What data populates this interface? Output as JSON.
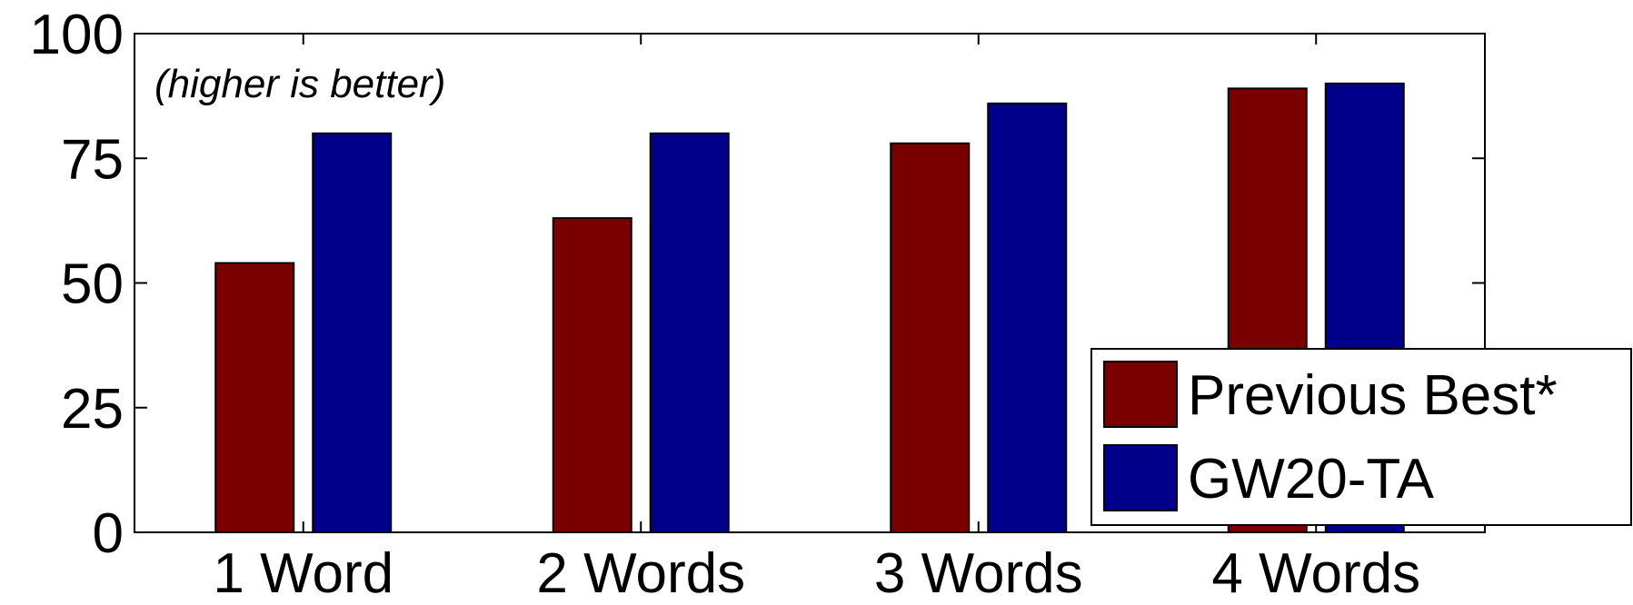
{
  "chart_data": {
    "type": "bar",
    "categories": [
      "1 Word",
      "2 Words",
      "3 Words",
      "4 Words"
    ],
    "series": [
      {
        "name": "Previous Best*",
        "color": "#7a0000",
        "values": [
          54,
          63,
          78,
          89
        ]
      },
      {
        "name": "GW20-TA",
        "color": "#00008b",
        "values": [
          80,
          80,
          86,
          90
        ]
      }
    ],
    "ylim": [
      0,
      100
    ],
    "yticks": [
      0,
      25,
      50,
      75,
      100
    ],
    "annotation": "(higher is better)",
    "legend_position": "bottom-right",
    "grid": false
  }
}
